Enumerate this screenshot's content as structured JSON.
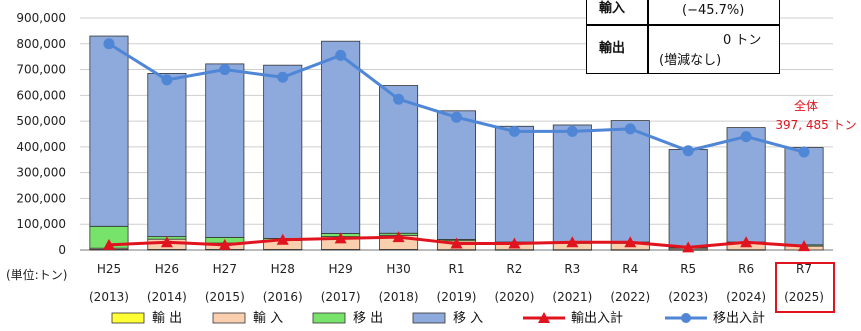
{
  "chart_data": {
    "type": "bar",
    "unit_label": "(単位:トン)",
    "ylim": [
      0,
      900000
    ],
    "y_ticks": [
      "0",
      "100,000",
      "200,000",
      "300,000",
      "400,000",
      "500,000",
      "600,000",
      "700,000",
      "800,000",
      "900,000"
    ],
    "grid": true,
    "legend_position": "bottom",
    "categories": [
      {
        "era": "H25",
        "year": "(2013)"
      },
      {
        "era": "H26",
        "year": "(2014)"
      },
      {
        "era": "H27",
        "year": "(2015)"
      },
      {
        "era": "H28",
        "year": "(2016)"
      },
      {
        "era": "H29",
        "year": "(2017)"
      },
      {
        "era": "H30",
        "year": "(2018)"
      },
      {
        "era": "R1",
        "year": "(2019)"
      },
      {
        "era": "R2",
        "year": "(2020)"
      },
      {
        "era": "R3",
        "year": "(2021)"
      },
      {
        "era": "R4",
        "year": "(2022)"
      },
      {
        "era": "R5",
        "year": "(2023)"
      },
      {
        "era": "R6",
        "year": "(2024)"
      },
      {
        "era": "R7",
        "year": "(2025)"
      }
    ],
    "stacked_series": [
      {
        "name": "輸 出",
        "color": "#ffff33",
        "values": [
          2000,
          2000,
          2000,
          2000,
          2000,
          2000,
          1000,
          1000,
          1000,
          1000,
          1000,
          1000,
          0
        ]
      },
      {
        "name": "輸 入",
        "color": "#f9cfae",
        "values": [
          5000,
          40000,
          25000,
          35000,
          50000,
          55000,
          35000,
          25000,
          25000,
          25000,
          6000,
          25000,
          15000
        ]
      },
      {
        "name": "移 出",
        "color": "#77e36b",
        "values": [
          85000,
          10000,
          22000,
          8000,
          12000,
          8000,
          5000,
          5000,
          5000,
          5000,
          2000,
          5000,
          5000
        ]
      },
      {
        "name": "移 入",
        "color": "#8eaadc",
        "values": [
          738000,
          633000,
          673000,
          672000,
          746000,
          573000,
          499000,
          449000,
          454000,
          471000,
          381000,
          444000,
          377485
        ]
      }
    ],
    "line_series": [
      {
        "name": "輸出入計",
        "color": "#e0141e",
        "marker": "triangle",
        "values": [
          20000,
          30000,
          20000,
          40000,
          45000,
          50000,
          25000,
          25000,
          30000,
          30000,
          10000,
          30000,
          15000
        ]
      },
      {
        "name": "移出入計",
        "color": "#4f86d6",
        "marker": "circle",
        "values": [
          800000,
          660000,
          700000,
          670000,
          755000,
          585000,
          515000,
          460000,
          460000,
          470000,
          385000,
          440000,
          380000
        ]
      }
    ],
    "annotation": {
      "line1": "全体",
      "line2": "397, 485 トン"
    }
  },
  "summary_box": {
    "rows": [
      {
        "label": "輸入",
        "value": "",
        "change": "(−45.7%)"
      },
      {
        "label": "輸出",
        "value": "0 トン",
        "change": "(増減なし)"
      }
    ]
  }
}
